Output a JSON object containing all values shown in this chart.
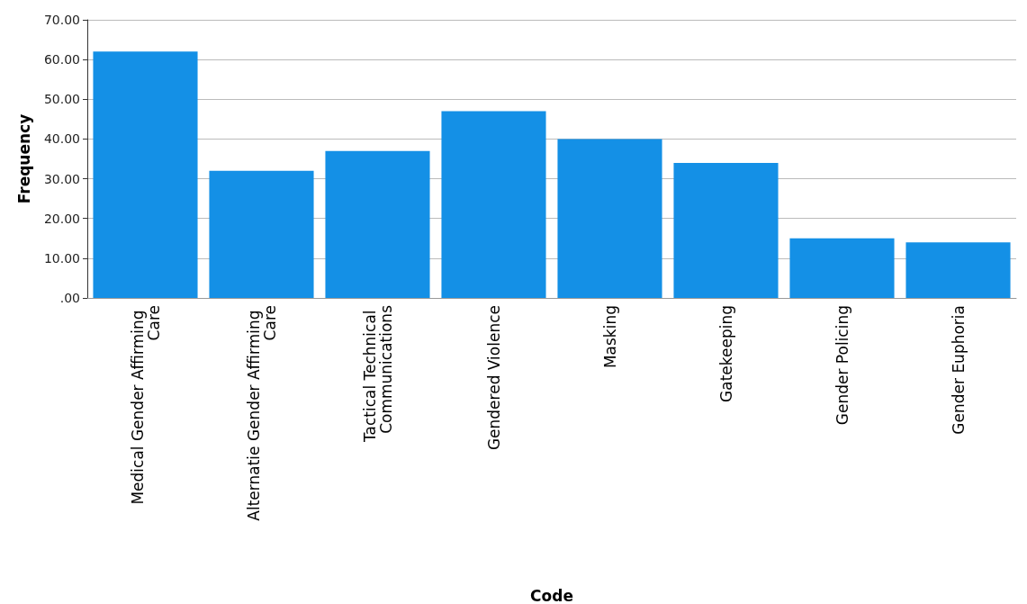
{
  "chart_data": {
    "type": "bar",
    "xlabel": "Code",
    "ylabel": "Frequency",
    "categories": [
      "Medical Gender Affirming Care",
      "Alternatie Gender Affirming Care",
      "Tactical Technical Communications",
      "Gendered Violence",
      "Masking",
      "Gatekeeping",
      "Gender Policing",
      "Gender Euphoria"
    ],
    "values": [
      62,
      32,
      37,
      47,
      40,
      34,
      15,
      14
    ],
    "color": "#1490e6",
    "ylim": [
      0,
      70
    ],
    "yticks": [
      {
        "value": 0,
        "label": ".00"
      },
      {
        "value": 10,
        "label": "10.00"
      },
      {
        "value": 20,
        "label": "20.00"
      },
      {
        "value": 30,
        "label": "30.00"
      },
      {
        "value": 40,
        "label": "40.00"
      },
      {
        "value": 50,
        "label": "50.00"
      },
      {
        "value": 60,
        "label": "60.00"
      },
      {
        "value": 70,
        "label": "70.00"
      }
    ],
    "grid": "y"
  }
}
